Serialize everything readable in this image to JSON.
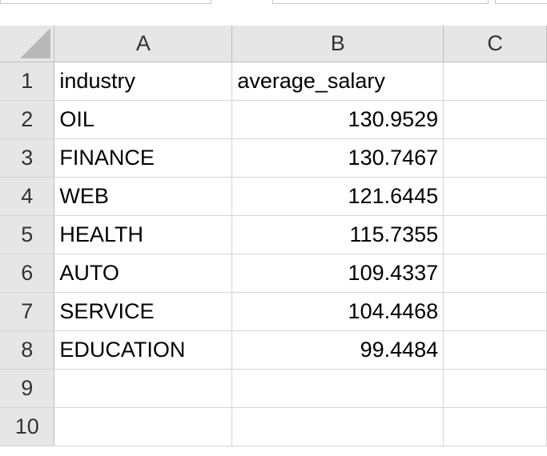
{
  "columns": [
    "A",
    "B",
    "C"
  ],
  "rows": [
    {
      "row": "1",
      "a": "industry",
      "b": "average_salary",
      "b_type": "text",
      "c": ""
    },
    {
      "row": "2",
      "a": "OIL",
      "b": "130.9529",
      "b_type": "num",
      "c": ""
    },
    {
      "row": "3",
      "a": "FINANCE",
      "b": "130.7467",
      "b_type": "num",
      "c": ""
    },
    {
      "row": "4",
      "a": "WEB",
      "b": "121.6445",
      "b_type": "num",
      "c": ""
    },
    {
      "row": "5",
      "a": "HEALTH",
      "b": "115.7355",
      "b_type": "num",
      "c": ""
    },
    {
      "row": "6",
      "a": "AUTO",
      "b": "109.4337",
      "b_type": "num",
      "c": ""
    },
    {
      "row": "7",
      "a": "SERVICE",
      "b": "104.4468",
      "b_type": "num",
      "c": ""
    },
    {
      "row": "8",
      "a": "EDUCATION",
      "b": "99.4484",
      "b_type": "num",
      "c": ""
    },
    {
      "row": "9",
      "a": "",
      "b": "",
      "b_type": "text",
      "c": ""
    },
    {
      "row": "10",
      "a": "",
      "b": "",
      "b_type": "text",
      "c": ""
    }
  ]
}
